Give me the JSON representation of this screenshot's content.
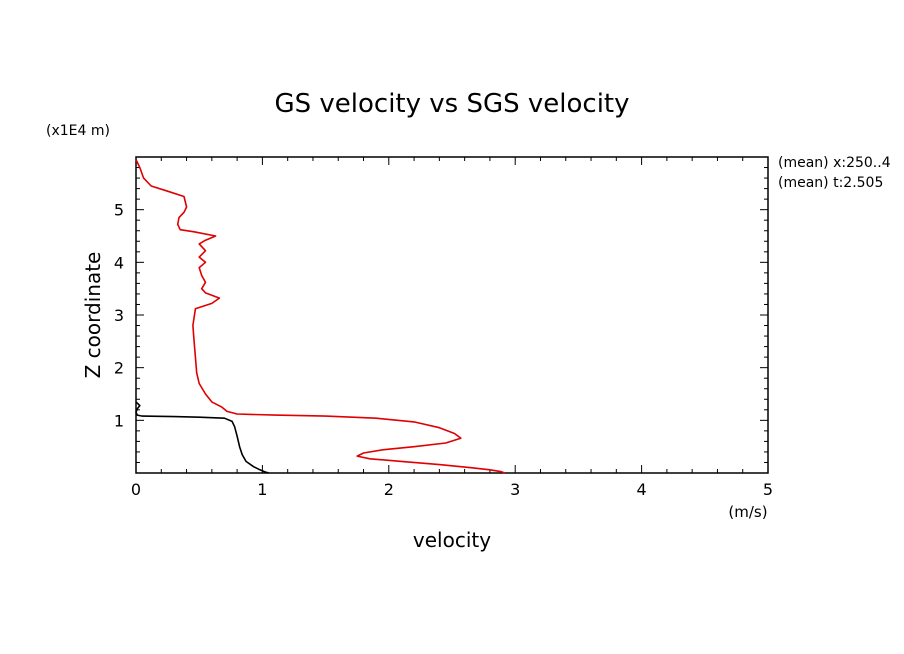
{
  "chart_data": {
    "type": "line",
    "title": "GS velocity vs SGS velocity",
    "xlabel": "velocity",
    "x_unit": "(m/s)",
    "ylabel": "Z coordinate",
    "y_unit": "(x1E4 m)",
    "xlim": [
      0,
      5
    ],
    "ylim": [
      0,
      6
    ],
    "x_ticks": [
      0,
      1,
      2,
      3,
      4,
      5
    ],
    "y_ticks": [
      1,
      2,
      3,
      4,
      5
    ],
    "annotations": [
      "(mean) x:250..4",
      "(mean) t:2.505"
    ],
    "series": [
      {
        "name": "SGS velocity",
        "color": "#000000",
        "points": [
          [
            0.0,
            1.35
          ],
          [
            0.03,
            1.28
          ],
          [
            0.01,
            1.22
          ],
          [
            0.0,
            1.15
          ],
          [
            0.01,
            1.1
          ],
          [
            0.05,
            1.08
          ],
          [
            0.3,
            1.07
          ],
          [
            0.5,
            1.06
          ],
          [
            0.7,
            1.04
          ],
          [
            0.76,
            0.98
          ],
          [
            0.78,
            0.88
          ],
          [
            0.8,
            0.7
          ],
          [
            0.82,
            0.5
          ],
          [
            0.84,
            0.35
          ],
          [
            0.87,
            0.22
          ],
          [
            0.93,
            0.12
          ],
          [
            0.98,
            0.06
          ],
          [
            1.02,
            0.02
          ],
          [
            1.05,
            0.0
          ]
        ]
      },
      {
        "name": "GS velocity",
        "color": "#e00000",
        "points": [
          [
            0.0,
            5.95
          ],
          [
            0.03,
            5.8
          ],
          [
            0.06,
            5.6
          ],
          [
            0.12,
            5.45
          ],
          [
            0.25,
            5.35
          ],
          [
            0.38,
            5.25
          ],
          [
            0.4,
            5.05
          ],
          [
            0.38,
            4.95
          ],
          [
            0.34,
            4.85
          ],
          [
            0.33,
            4.72
          ],
          [
            0.35,
            4.62
          ],
          [
            0.46,
            4.58
          ],
          [
            0.63,
            4.5
          ],
          [
            0.55,
            4.42
          ],
          [
            0.5,
            4.35
          ],
          [
            0.55,
            4.22
          ],
          [
            0.5,
            4.1
          ],
          [
            0.55,
            4.0
          ],
          [
            0.5,
            3.9
          ],
          [
            0.52,
            3.75
          ],
          [
            0.55,
            3.62
          ],
          [
            0.52,
            3.5
          ],
          [
            0.55,
            3.42
          ],
          [
            0.66,
            3.32
          ],
          [
            0.6,
            3.22
          ],
          [
            0.47,
            3.12
          ],
          [
            0.45,
            2.8
          ],
          [
            0.46,
            2.5
          ],
          [
            0.47,
            2.2
          ],
          [
            0.48,
            1.9
          ],
          [
            0.5,
            1.7
          ],
          [
            0.55,
            1.5
          ],
          [
            0.6,
            1.35
          ],
          [
            0.68,
            1.25
          ],
          [
            0.72,
            1.17
          ],
          [
            0.8,
            1.12
          ],
          [
            1.1,
            1.1
          ],
          [
            1.5,
            1.08
          ],
          [
            1.9,
            1.04
          ],
          [
            2.2,
            0.97
          ],
          [
            2.4,
            0.86
          ],
          [
            2.52,
            0.75
          ],
          [
            2.57,
            0.66
          ],
          [
            2.45,
            0.57
          ],
          [
            2.2,
            0.5
          ],
          [
            1.95,
            0.44
          ],
          [
            1.8,
            0.38
          ],
          [
            1.75,
            0.32
          ],
          [
            1.85,
            0.27
          ],
          [
            2.1,
            0.22
          ],
          [
            2.4,
            0.16
          ],
          [
            2.65,
            0.1
          ],
          [
            2.8,
            0.06
          ],
          [
            2.88,
            0.03
          ],
          [
            2.92,
            0.0
          ]
        ]
      }
    ]
  }
}
